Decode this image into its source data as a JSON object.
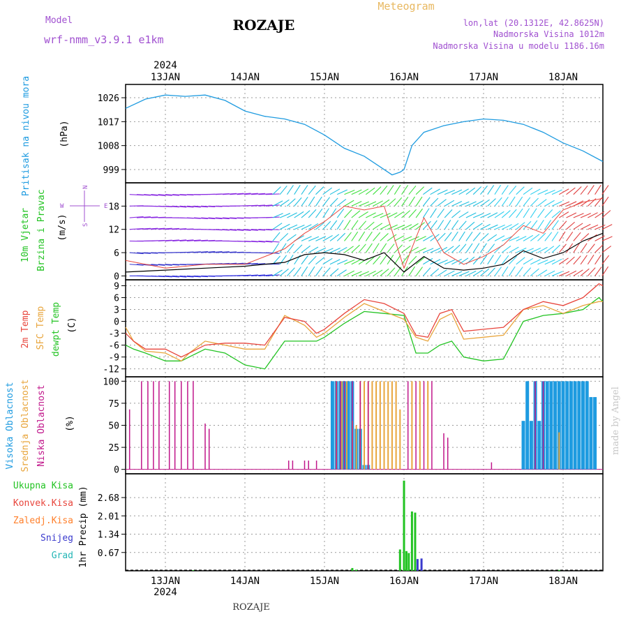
{
  "header": {
    "model_label": "Model",
    "model_name": "wrf-nmm_v3.9.1 e1km",
    "station": "ROZAJE",
    "meteogram_label": "Meteogram",
    "location": "lon,lat (20.1312E, 42.8625N)",
    "elevation": "Nadmorska Visina 1012m",
    "model_elevation": "Nadmorska Visina u modelu 1186.16m",
    "footer_station": "ROZAJE",
    "credit": "made by Angel",
    "year_top": "2024",
    "year_bottom": "2024",
    "day_labels": [
      "13JAN",
      "14JAN",
      "15JAN",
      "16JAN",
      "17JAN",
      "18JAN"
    ]
  },
  "colors": {
    "pressure": "#1e9be0",
    "wind_speed": "#000000",
    "gust": "#e8453c",
    "temp2m": "#e8453c",
    "sfc_temp": "#e8a53c",
    "dewpt": "#22c322",
    "cloud_high": "#1e9be0",
    "cloud_mid": "#e8a53c",
    "cloud_low": "#c0168a",
    "precip_total": "#22c322",
    "precip_conv": "#e8453c",
    "precip_frozen": "#ff7f2a",
    "snow": "#3a3acd",
    "hail": "#22b5b5",
    "model_label": "#a050d0",
    "meteogram_label": "#e8b860",
    "location_label": "#a050d0"
  },
  "panels": {
    "pressure": {
      "label": "Pritisak na nivou mora",
      "unit": "(hPa)"
    },
    "wind": {
      "label1": "10m Vjetar",
      "label2": "Brzina i Pravac",
      "unit": "(m/s)",
      "compass": {
        "w": "W",
        "e": "E",
        "n": "N",
        "s": "S"
      }
    },
    "temp": {
      "label1": "2m Temp",
      "label2": "SFC Temp",
      "label3": "dewpt Temp",
      "unit": "(C)"
    },
    "cloud": {
      "label1": "Visoka Oblacnost",
      "label2": "Srednja Oblacnost",
      "label3": "Niska Oblacnost",
      "unit": "(%)"
    },
    "precip": {
      "unit": "1hr Precip (mm)",
      "legend": [
        "Ukupna Kisa",
        "Konvek.Kisa",
        "Zaledj.Kisa",
        "Snijeg",
        "Grad"
      ]
    }
  },
  "chart_data": [
    {
      "type": "line",
      "name": "pressure",
      "x": [
        12.5,
        12.75,
        13.0,
        13.25,
        13.5,
        13.75,
        14.0,
        14.25,
        14.5,
        14.75,
        15.0,
        15.25,
        15.5,
        15.75,
        15.85,
        15.95,
        16.0,
        16.1,
        16.25,
        16.5,
        16.75,
        17.0,
        17.25,
        17.5,
        17.75,
        18.0,
        18.25,
        18.5
      ],
      "y": [
        1022,
        1025.5,
        1027,
        1026.5,
        1027,
        1025,
        1021,
        1019,
        1018,
        1016,
        1012,
        1007,
        1004,
        999,
        997,
        998,
        999,
        1008,
        1013,
        1015.5,
        1017,
        1018,
        1017.5,
        1016,
        1013,
        1009,
        1006,
        1002
      ],
      "ylim": [
        994,
        1031
      ],
      "yticks": [
        999,
        1008,
        1017,
        1026
      ]
    },
    {
      "type": "line",
      "name": "wind",
      "x": [
        12.5,
        13.0,
        13.5,
        14.0,
        14.5,
        14.75,
        15.0,
        15.25,
        15.5,
        15.75,
        16.0,
        16.25,
        16.5,
        16.75,
        17.0,
        17.25,
        17.5,
        17.75,
        18.0,
        18.25,
        18.5
      ],
      "speed": [
        1,
        1.5,
        2,
        2.5,
        3.5,
        5.5,
        6,
        5.5,
        4,
        6,
        1,
        5,
        2,
        1.5,
        2,
        3,
        6.5,
        4.5,
        6,
        9,
        11
      ],
      "gust": [
        4,
        2,
        3,
        3,
        7,
        11,
        14,
        18,
        17,
        18,
        2,
        15,
        6,
        3,
        5,
        8,
        13,
        11,
        17,
        19,
        20
      ],
      "ylim": [
        -1,
        24
      ],
      "yticks": [
        0,
        6,
        12,
        18
      ]
    },
    {
      "type": "line",
      "name": "temperature",
      "x": [
        12.5,
        12.6,
        12.75,
        13.0,
        13.2,
        13.3,
        13.5,
        13.75,
        14.0,
        14.25,
        14.5,
        14.75,
        14.9,
        15.0,
        15.25,
        15.5,
        15.75,
        16.0,
        16.15,
        16.3,
        16.45,
        16.6,
        16.75,
        17.0,
        17.25,
        17.5,
        17.75,
        18.0,
        18.25,
        18.45,
        18.5
      ],
      "temp2m": [
        -3,
        -5,
        -7,
        -7,
        -9,
        -8,
        -6,
        -5.5,
        -5.5,
        -6,
        1,
        0,
        -3,
        -2,
        2,
        5.5,
        4.5,
        2,
        -3.5,
        -4,
        2,
        3,
        -2.5,
        -2,
        -1.5,
        3,
        5,
        4,
        6,
        9.5,
        9
      ],
      "sfc": [
        -1.5,
        -5,
        -7.5,
        -8,
        -10,
        -8,
        -5,
        -6,
        -7,
        -7,
        1.5,
        -1,
        -4,
        -3,
        1,
        4.5,
        2.5,
        0.5,
        -4,
        -5,
        0.5,
        2,
        -4.5,
        -4,
        -3.5,
        3,
        4,
        2,
        4,
        5,
        5
      ],
      "dewpt": [
        -6,
        -7,
        -8,
        -10,
        -10,
        -9,
        -7,
        -8,
        -11,
        -12,
        -5,
        -5,
        -5,
        -4,
        -0.5,
        2.5,
        2,
        1.5,
        -8,
        -8,
        -6,
        -5,
        -9,
        -10,
        -9.5,
        0,
        1.5,
        2,
        3,
        6,
        5
      ],
      "ylim": [
        -14,
        10.5
      ],
      "yticks": [
        -12,
        -9,
        -6,
        -3,
        0,
        3,
        6,
        9
      ]
    },
    {
      "type": "bar",
      "name": "cloud_cover",
      "ylim": [
        -5,
        105
      ],
      "yticks": [
        0,
        25,
        50,
        75,
        100
      ],
      "low": [
        [
          12.55,
          68
        ],
        [
          12.7,
          100
        ],
        [
          12.78,
          100
        ],
        [
          12.85,
          100
        ],
        [
          12.92,
          100
        ],
        [
          13.05,
          100
        ],
        [
          13.12,
          100
        ],
        [
          13.2,
          100
        ],
        [
          13.28,
          100
        ],
        [
          13.35,
          100
        ],
        [
          13.5,
          52
        ],
        [
          13.55,
          46
        ],
        [
          14.55,
          10
        ],
        [
          14.6,
          10
        ],
        [
          14.75,
          10
        ],
        [
          14.8,
          10
        ],
        [
          14.9,
          10
        ],
        [
          15.15,
          100
        ],
        [
          15.2,
          100
        ],
        [
          15.25,
          100
        ],
        [
          15.35,
          100
        ],
        [
          15.45,
          100
        ],
        [
          15.55,
          100
        ],
        [
          16.05,
          100
        ],
        [
          16.15,
          100
        ],
        [
          16.25,
          100
        ],
        [
          16.35,
          100
        ],
        [
          16.5,
          41
        ],
        [
          16.55,
          36
        ],
        [
          17.1,
          8
        ],
        [
          17.65,
          100
        ],
        [
          17.75,
          100
        ]
      ],
      "mid": [
        [
          15.15,
          100
        ],
        [
          15.22,
          100
        ],
        [
          15.28,
          100
        ],
        [
          15.35,
          55
        ],
        [
          15.4,
          50
        ],
        [
          15.45,
          100
        ],
        [
          15.5,
          100
        ],
        [
          15.55,
          100
        ],
        [
          15.6,
          100
        ],
        [
          15.65,
          100
        ],
        [
          15.7,
          100
        ],
        [
          15.75,
          100
        ],
        [
          15.8,
          100
        ],
        [
          15.85,
          100
        ],
        [
          15.9,
          100
        ],
        [
          15.95,
          68
        ],
        [
          16.1,
          100
        ],
        [
          16.2,
          100
        ],
        [
          16.3,
          100
        ],
        [
          17.95,
          42
        ]
      ],
      "high": [
        [
          15.1,
          100
        ],
        [
          15.15,
          100
        ],
        [
          15.2,
          100
        ],
        [
          15.25,
          100
        ],
        [
          15.3,
          100
        ],
        [
          15.35,
          100
        ],
        [
          15.4,
          46
        ],
        [
          15.45,
          46
        ],
        [
          15.5,
          5
        ],
        [
          15.55,
          5
        ],
        [
          17.5,
          55
        ],
        [
          17.55,
          100
        ],
        [
          17.6,
          55
        ],
        [
          17.65,
          100
        ],
        [
          17.7,
          55
        ],
        [
          17.75,
          100
        ],
        [
          17.8,
          100
        ],
        [
          17.85,
          100
        ],
        [
          17.9,
          100
        ],
        [
          17.95,
          100
        ],
        [
          18.0,
          100
        ],
        [
          18.05,
          100
        ],
        [
          18.1,
          100
        ],
        [
          18.15,
          100
        ],
        [
          18.2,
          100
        ],
        [
          18.25,
          100
        ],
        [
          18.3,
          100
        ],
        [
          18.35,
          82
        ],
        [
          18.4,
          82
        ]
      ]
    },
    {
      "type": "bar",
      "name": "precip",
      "ylim": [
        0,
        3.55
      ],
      "yticks": [
        0.67,
        1.34,
        2.01,
        2.68
      ],
      "total": [
        [
          13.35,
          0.02
        ],
        [
          15.35,
          0.1
        ],
        [
          15.4,
          0.04
        ],
        [
          15.95,
          0.78
        ],
        [
          16.0,
          3.3
        ],
        [
          16.03,
          0.72
        ],
        [
          16.06,
          0.65
        ],
        [
          16.1,
          2.17
        ],
        [
          16.14,
          2.13
        ],
        [
          17.95,
          0.03
        ]
      ],
      "snow": [
        [
          16.17,
          0.43
        ],
        [
          16.22,
          0.45
        ]
      ]
    }
  ]
}
